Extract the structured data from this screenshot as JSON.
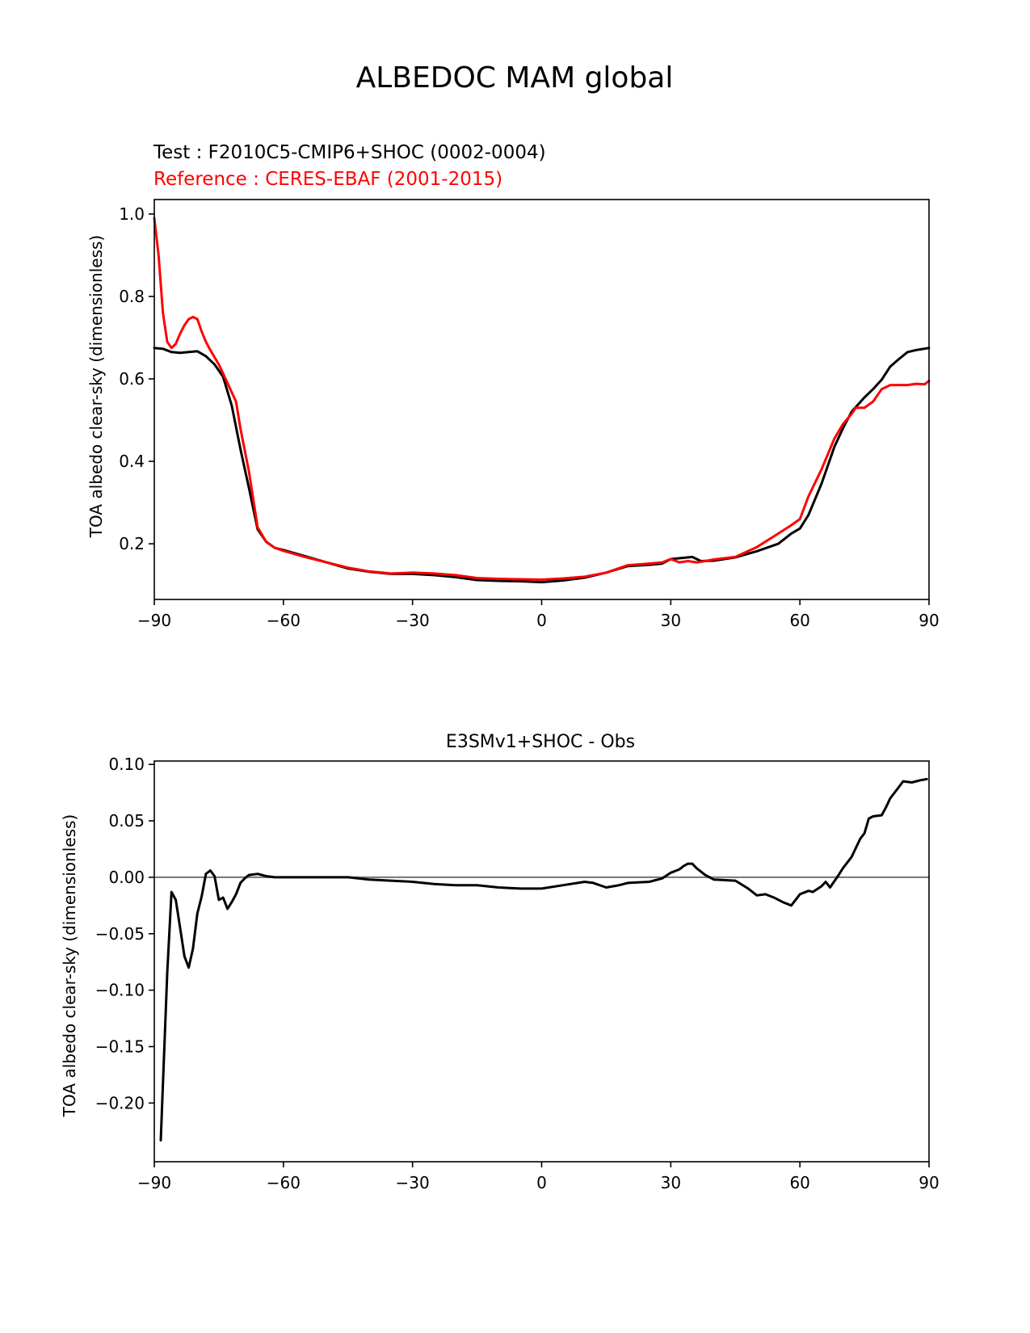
{
  "figure": {
    "title": "ALBEDOC MAM global",
    "test_label": "Test : F2010C5-CMIP6+SHOC (0002-0004)",
    "reference_label": "Reference : CERES-EBAF (2001-2015)",
    "colors": {
      "test": "#000000",
      "reference": "#ff0000",
      "zero_line": "#808080"
    }
  },
  "chart_data": [
    {
      "type": "line",
      "title": "",
      "xlabel": "",
      "ylabel": "TOA albedo clear-sky (dimensionless)",
      "xlim": [
        -90,
        90
      ],
      "ylim": [
        0.065,
        1.035
      ],
      "xticks": [
        -90,
        -60,
        -30,
        0,
        30,
        60,
        90
      ],
      "xtick_labels": [
        "−90",
        "−60",
        "−30",
        "0",
        "30",
        "60",
        "90"
      ],
      "yticks": [
        0.2,
        0.4,
        0.6,
        0.8,
        1.0
      ],
      "ytick_labels": [
        "0.2",
        "0.4",
        "0.6",
        "0.8",
        "1.0"
      ],
      "grid": false,
      "series": [
        {
          "role": "test",
          "color": "#000000",
          "x": [
            -90,
            -88,
            -86,
            -84,
            -82,
            -80,
            -78,
            -76,
            -74,
            -72,
            -70,
            -68,
            -66,
            -64,
            -62,
            -60,
            -55,
            -50,
            -45,
            -40,
            -35,
            -30,
            -25,
            -20,
            -15,
            -10,
            -5,
            0,
            5,
            10,
            15,
            20,
            25,
            28,
            30,
            32,
            35,
            37,
            40,
            45,
            50,
            55,
            58,
            60,
            62,
            65,
            68,
            70,
            72,
            75,
            77,
            79,
            81,
            83,
            85,
            87,
            90
          ],
          "y": [
            0.675,
            0.673,
            0.665,
            0.663,
            0.665,
            0.667,
            0.655,
            0.635,
            0.605,
            0.535,
            0.43,
            0.335,
            0.235,
            0.205,
            0.19,
            0.185,
            0.17,
            0.155,
            0.14,
            0.132,
            0.127,
            0.127,
            0.124,
            0.119,
            0.112,
            0.11,
            0.109,
            0.107,
            0.111,
            0.118,
            0.13,
            0.146,
            0.149,
            0.152,
            0.163,
            0.165,
            0.168,
            0.158,
            0.159,
            0.167,
            0.182,
            0.2,
            0.225,
            0.237,
            0.27,
            0.345,
            0.435,
            0.48,
            0.52,
            0.555,
            0.575,
            0.598,
            0.63,
            0.648,
            0.665,
            0.67,
            0.675
          ]
        },
        {
          "role": "reference",
          "color": "#ff0000",
          "x": [
            -90,
            -89,
            -88,
            -87,
            -86,
            -85,
            -84,
            -83,
            -82,
            -81,
            -80,
            -79,
            -78,
            -77,
            -75,
            -73,
            -71,
            -70,
            -68,
            -66,
            -64,
            -62,
            -60,
            -55,
            -50,
            -45,
            -40,
            -35,
            -30,
            -25,
            -20,
            -15,
            -10,
            -5,
            0,
            5,
            10,
            15,
            20,
            25,
            28,
            30,
            32,
            34,
            36,
            38,
            40,
            45,
            50,
            55,
            58,
            60,
            62,
            65,
            68,
            70,
            72,
            73,
            75,
            77,
            79,
            81,
            83,
            85,
            87,
            89,
            90
          ],
          "y": [
            0.99,
            0.9,
            0.76,
            0.69,
            0.675,
            0.685,
            0.71,
            0.73,
            0.745,
            0.75,
            0.745,
            0.715,
            0.69,
            0.67,
            0.635,
            0.59,
            0.545,
            0.48,
            0.375,
            0.24,
            0.205,
            0.19,
            0.183,
            0.168,
            0.155,
            0.142,
            0.133,
            0.128,
            0.13,
            0.128,
            0.124,
            0.117,
            0.115,
            0.114,
            0.113,
            0.116,
            0.12,
            0.13,
            0.148,
            0.152,
            0.155,
            0.163,
            0.155,
            0.158,
            0.155,
            0.158,
            0.162,
            0.168,
            0.192,
            0.225,
            0.245,
            0.26,
            0.315,
            0.38,
            0.455,
            0.49,
            0.515,
            0.53,
            0.53,
            0.545,
            0.575,
            0.585,
            0.585,
            0.585,
            0.588,
            0.587,
            0.595
          ]
        }
      ]
    },
    {
      "type": "line",
      "title": "E3SMv1+SHOC - Obs",
      "xlabel": "",
      "ylabel": "TOA albedo clear-sky (dimensionless)",
      "xlim": [
        -90,
        90
      ],
      "ylim": [
        -0.252,
        0.103
      ],
      "xticks": [
        -90,
        -60,
        -30,
        0,
        30,
        60,
        90
      ],
      "xtick_labels": [
        "−90",
        "−60",
        "−30",
        "0",
        "30",
        "60",
        "90"
      ],
      "yticks": [
        -0.2,
        -0.15,
        -0.1,
        -0.05,
        0.0,
        0.05,
        0.1
      ],
      "ytick_labels": [
        "−0.20",
        "−0.15",
        "−0.10",
        "−0.05",
        "0.00",
        "0.05",
        "0.10"
      ],
      "zero_line": 0.0,
      "grid": false,
      "series": [
        {
          "role": "difference",
          "color": "#000000",
          "x": [
            -88.5,
            -87,
            -86,
            -85,
            -84,
            -83,
            -82,
            -81,
            -80,
            -79,
            -78,
            -77,
            -76,
            -75,
            -74,
            -73,
            -72,
            -71,
            -70,
            -69,
            -68,
            -66,
            -65,
            -64,
            -62,
            -60,
            -55,
            -50,
            -45,
            -40,
            -35,
            -30,
            -25,
            -20,
            -15,
            -10,
            -5,
            0,
            5,
            10,
            12,
            15,
            18,
            20,
            25,
            28,
            30,
            32,
            33,
            34,
            35,
            36,
            38,
            40,
            45,
            48,
            50,
            52,
            54,
            56,
            58,
            60,
            62,
            63,
            65,
            66,
            67,
            69,
            70,
            72,
            74,
            75,
            76,
            77,
            79,
            80,
            81,
            83,
            84,
            86,
            88,
            89.5
          ],
          "y": [
            -0.233,
            -0.085,
            -0.013,
            -0.02,
            -0.045,
            -0.07,
            -0.08,
            -0.063,
            -0.032,
            -0.017,
            0.003,
            0.006,
            0.001,
            -0.02,
            -0.018,
            -0.028,
            -0.022,
            -0.015,
            -0.005,
            -0.001,
            0.002,
            0.003,
            0.002,
            0.001,
            0.0,
            0.0,
            0.0,
            0.0,
            0.0,
            -0.002,
            -0.003,
            -0.004,
            -0.006,
            -0.007,
            -0.007,
            -0.009,
            -0.01,
            -0.01,
            -0.007,
            -0.004,
            -0.005,
            -0.009,
            -0.007,
            -0.005,
            -0.004,
            -0.001,
            0.004,
            0.007,
            0.01,
            0.012,
            0.012,
            0.008,
            0.002,
            -0.002,
            -0.003,
            -0.01,
            -0.016,
            -0.015,
            -0.018,
            -0.022,
            -0.025,
            -0.015,
            -0.012,
            -0.013,
            -0.008,
            -0.004,
            -0.009,
            0.002,
            0.008,
            0.018,
            0.034,
            0.039,
            0.052,
            0.054,
            0.055,
            0.062,
            0.07,
            0.08,
            0.085,
            0.084,
            0.086,
            0.087
          ]
        }
      ]
    }
  ]
}
